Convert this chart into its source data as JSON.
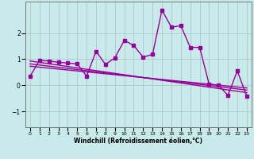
{
  "xlabel": "Windchill (Refroidissement éolien,°C)",
  "bg_color": "#c8eaea",
  "grid_color": "#b0c8c8",
  "line_color": "#990099",
  "xlim": [
    -0.5,
    23.5
  ],
  "ylim": [
    -1.6,
    3.2
  ],
  "xticks": [
    0,
    1,
    2,
    3,
    4,
    5,
    6,
    7,
    8,
    9,
    10,
    11,
    12,
    13,
    14,
    15,
    16,
    17,
    18,
    19,
    20,
    21,
    22,
    23
  ],
  "yticks": [
    -1,
    0,
    1,
    2
  ],
  "main_x": [
    0,
    1,
    2,
    3,
    4,
    5,
    6,
    7,
    8,
    9,
    10,
    11,
    12,
    13,
    14,
    15,
    16,
    17,
    18,
    19,
    20,
    21,
    22,
    23
  ],
  "main_y": [
    0.35,
    0.95,
    0.93,
    0.88,
    0.85,
    0.82,
    0.35,
    1.3,
    0.8,
    1.05,
    1.72,
    1.52,
    1.08,
    1.18,
    2.88,
    2.22,
    2.28,
    1.45,
    1.45,
    0.05,
    0.0,
    -0.38,
    0.55,
    -0.42
  ],
  "line2_x": [
    0,
    23
  ],
  "line2_y": [
    0.93,
    -0.28
  ],
  "line3_x": [
    0,
    23
  ],
  "line3_y": [
    0.82,
    -0.18
  ],
  "line4_x": [
    0,
    23
  ],
  "line4_y": [
    0.73,
    -0.1
  ],
  "markersize": 2.5,
  "linewidth": 1.0
}
